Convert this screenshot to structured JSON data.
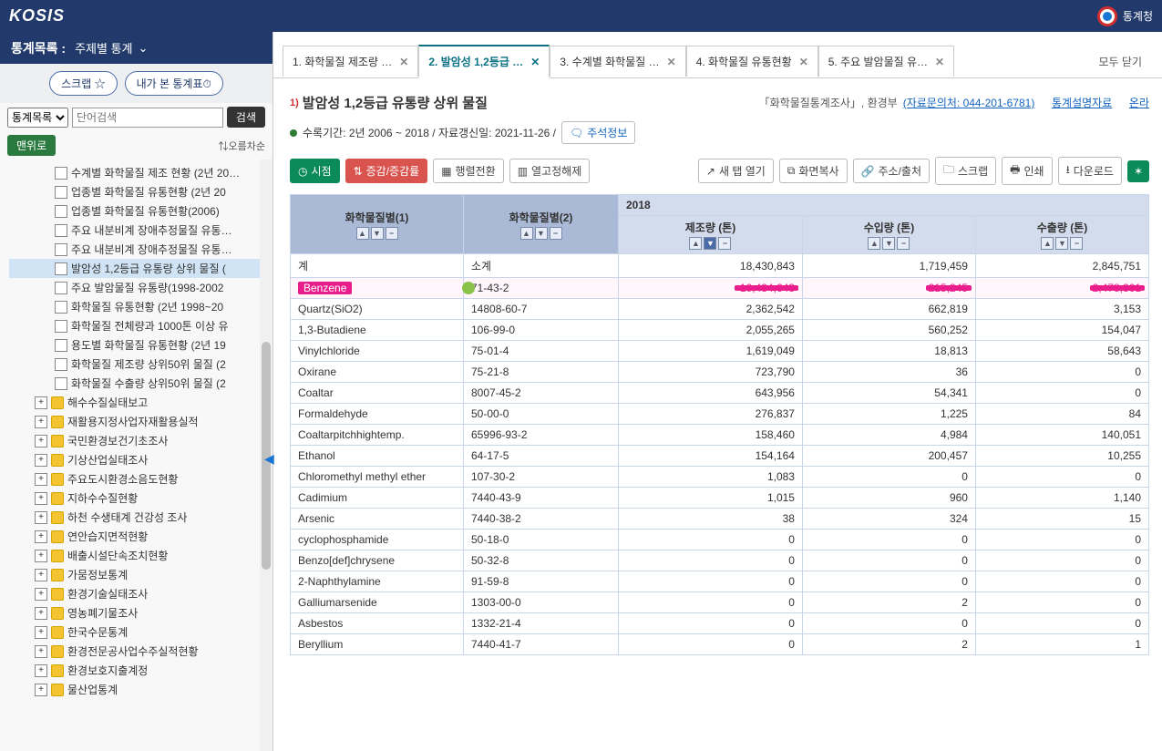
{
  "topbar": {
    "logo": "KOSIS",
    "agency": "통계청"
  },
  "sidebar": {
    "header_label": "통계목록 :",
    "header_dropdown": "주제별 통계",
    "btn_scrap": "스크랩 ☆",
    "btn_mytables": "내가 본 통계표⏱",
    "search_scope": "통계목록",
    "search_placeholder": "단어검색",
    "btn_search": "검색",
    "btn_top": "맨위로",
    "sort_label": "⇅오름차순",
    "tree": [
      {
        "indent": 2,
        "icon": "file",
        "label": "수계별 화학물질 제조 현황 (2년 20…"
      },
      {
        "indent": 2,
        "icon": "file",
        "label": "업종별 화학물질 유통현황 (2년 20"
      },
      {
        "indent": 2,
        "icon": "file",
        "label": "업종별 화학물질 유통현황(2006)"
      },
      {
        "indent": 2,
        "icon": "file",
        "label": "주요 내분비계 장애추정물질 유통…"
      },
      {
        "indent": 2,
        "icon": "file",
        "label": "주요 내분비계 장애추정물질 유통…"
      },
      {
        "indent": 2,
        "icon": "file",
        "label": "발암성 1,2등급 유통량 상위 물질 (",
        "selected": true
      },
      {
        "indent": 2,
        "icon": "file",
        "label": "주요 발암물질 유통량(1998-2002"
      },
      {
        "indent": 2,
        "icon": "file",
        "label": "화학물질 유통현황 (2년 1998~20"
      },
      {
        "indent": 2,
        "icon": "file",
        "label": "화학물질 전체량과 1000톤 이상 유"
      },
      {
        "indent": 2,
        "icon": "file",
        "label": "용도별 화학물질 유통현황 (2년 19"
      },
      {
        "indent": 2,
        "icon": "file",
        "label": "화학물질 제조량 상위50위 물질 (2"
      },
      {
        "indent": 2,
        "icon": "file",
        "label": "화학물질 수출량 상위50위 물질 (2"
      },
      {
        "indent": 1,
        "icon": "folder",
        "label": "해수수질실태보고",
        "plus": true
      },
      {
        "indent": 1,
        "icon": "folder",
        "label": "재활용지정사업자재활용실적",
        "plus": true
      },
      {
        "indent": 1,
        "icon": "folder",
        "label": "국민환경보건기초조사",
        "plus": true
      },
      {
        "indent": 1,
        "icon": "folder",
        "label": "기상산업실태조사",
        "plus": true
      },
      {
        "indent": 1,
        "icon": "folder",
        "label": "주요도시환경소음도현황",
        "plus": true
      },
      {
        "indent": 1,
        "icon": "folder",
        "label": "지하수수질현황",
        "plus": true
      },
      {
        "indent": 1,
        "icon": "folder",
        "label": "하천 수생태계 건강성 조사",
        "plus": true
      },
      {
        "indent": 1,
        "icon": "folder",
        "label": "연안습지면적현황",
        "plus": true
      },
      {
        "indent": 1,
        "icon": "folder",
        "label": "배출시설단속조치현황",
        "plus": true
      },
      {
        "indent": 1,
        "icon": "folder",
        "label": "가뭄정보통계",
        "plus": true
      },
      {
        "indent": 1,
        "icon": "folder",
        "label": "환경기술실태조사",
        "plus": true
      },
      {
        "indent": 1,
        "icon": "folder",
        "label": "영농폐기물조사",
        "plus": true
      },
      {
        "indent": 1,
        "icon": "folder",
        "label": "한국수문통계",
        "plus": true
      },
      {
        "indent": 1,
        "icon": "folder",
        "label": "환경전문공사업수주실적현황",
        "plus": true
      },
      {
        "indent": 1,
        "icon": "folder",
        "label": "환경보호지출계정",
        "plus": true
      },
      {
        "indent": 1,
        "icon": "folder",
        "label": "물산업통계",
        "plus": true
      }
    ]
  },
  "tabs": {
    "items": [
      {
        "label": "1. 화학물질 제조량 …"
      },
      {
        "label": "2. 발암성 1,2등급 …",
        "active": true
      },
      {
        "label": "3. 수계별 화학물질 …"
      },
      {
        "label": "4. 화학물질 유통현황"
      },
      {
        "label": "5. 주요 발암물질 유…"
      }
    ],
    "close_all": "모두 닫기"
  },
  "content": {
    "sup": "1)",
    "title": "발암성 1,2등급 유통량 상위 물질",
    "survey": "「화학물질통계조사」, 환경부",
    "contact_label": "(자료문의처: 044-201-6781)",
    "desc_link": "통계설명자료",
    "online_link": "온라",
    "period": "수록기간: 2년 2006 ~ 2018 / 자료갱신일: 2021-11-26 /",
    "note_btn": "주석정보"
  },
  "toolbar": {
    "view": "시점",
    "rate": "증감/증감률",
    "transpose": "행렬전환",
    "unfix": "열고정해제",
    "newtab": "새 탭 열기",
    "copy": "화면복사",
    "source": "주소/출처",
    "scrap": "스크랩",
    "print": "인쇄",
    "download": "다운로드"
  },
  "table": {
    "col1": "화학물질별(1)",
    "col2": "화학물질별(2)",
    "year": "2018",
    "sub1": "제조량 (톤)",
    "sub2": "수입량 (톤)",
    "sub3": "수출량 (톤)",
    "rows": [
      {
        "c1": "계",
        "c2": "소계",
        "v1": "18,430,843",
        "v2": "1,719,459",
        "v3": "2,845,751"
      },
      {
        "c1": "Benzene",
        "c2": "71-43-2",
        "v1": "10,434,643",
        "v2": "215,245",
        "v3": "2,478,361",
        "highlight": true
      },
      {
        "c1": "Quartz(SiO2)",
        "c2": "14808-60-7",
        "v1": "2,362,542",
        "v2": "662,819",
        "v3": "3,153"
      },
      {
        "c1": "1,3-Butadiene",
        "c2": "106-99-0",
        "v1": "2,055,265",
        "v2": "560,252",
        "v3": "154,047"
      },
      {
        "c1": "Vinylchloride",
        "c2": "75-01-4",
        "v1": "1,619,049",
        "v2": "18,813",
        "v3": "58,643"
      },
      {
        "c1": "Oxirane",
        "c2": "75-21-8",
        "v1": "723,790",
        "v2": "36",
        "v3": "0"
      },
      {
        "c1": "Coaltar",
        "c2": "8007-45-2",
        "v1": "643,956",
        "v2": "54,341",
        "v3": "0"
      },
      {
        "c1": "Formaldehyde",
        "c2": "50-00-0",
        "v1": "276,837",
        "v2": "1,225",
        "v3": "84"
      },
      {
        "c1": "Coaltarpitchhightemp.",
        "c2": "65996-93-2",
        "v1": "158,460",
        "v2": "4,984",
        "v3": "140,051"
      },
      {
        "c1": "Ethanol",
        "c2": "64-17-5",
        "v1": "154,164",
        "v2": "200,457",
        "v3": "10,255"
      },
      {
        "c1": "Chloromethyl methyl ether",
        "c2": "107-30-2",
        "v1": "1,083",
        "v2": "0",
        "v3": "0"
      },
      {
        "c1": "Cadimium",
        "c2": "7440-43-9",
        "v1": "1,015",
        "v2": "960",
        "v3": "1,140"
      },
      {
        "c1": "Arsenic",
        "c2": "7440-38-2",
        "v1": "38",
        "v2": "324",
        "v3": "15"
      },
      {
        "c1": "cyclophosphamide",
        "c2": "50-18-0",
        "v1": "0",
        "v2": "0",
        "v3": "0"
      },
      {
        "c1": "Benzo[def]chrysene",
        "c2": "50-32-8",
        "v1": "0",
        "v2": "0",
        "v3": "0"
      },
      {
        "c1": "2-Naphthylamine",
        "c2": "91-59-8",
        "v1": "0",
        "v2": "0",
        "v3": "0"
      },
      {
        "c1": "Galliumarsenide",
        "c2": "1303-00-0",
        "v1": "0",
        "v2": "2",
        "v3": "0"
      },
      {
        "c1": "Asbestos",
        "c2": "1332-21-4",
        "v1": "0",
        "v2": "0",
        "v3": "0"
      },
      {
        "c1": "Beryllium",
        "c2": "7440-41-7",
        "v1": "0",
        "v2": "2",
        "v3": "1"
      }
    ]
  }
}
